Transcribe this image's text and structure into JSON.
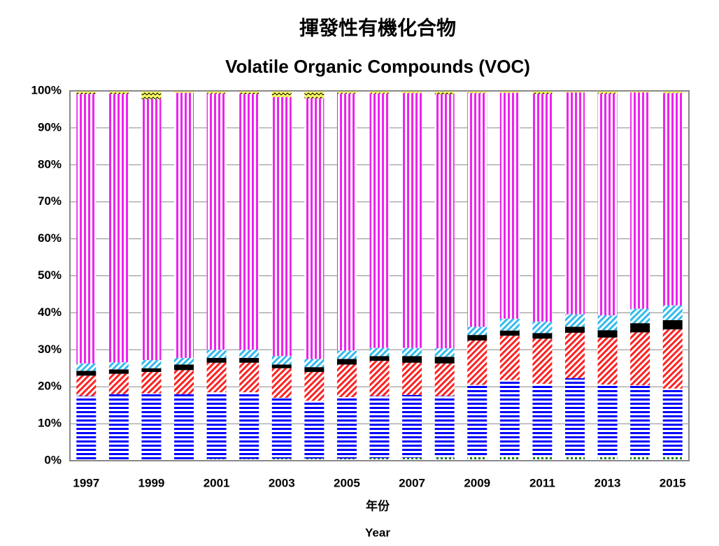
{
  "chart_data": {
    "type": "stacked_bar_100",
    "title": "揮發性有機化合物",
    "subtitle": "Volatile Organic Compounds (VOC)",
    "x_label": "年份",
    "x_label_en": "Year",
    "categories": [
      "1997",
      null,
      "1999",
      null,
      "2001",
      null,
      "2003",
      null,
      "2005",
      null,
      "2007",
      null,
      "2009",
      null,
      "2011",
      null,
      "2013",
      null,
      "2015"
    ],
    "ylim": [
      0,
      100
    ],
    "yticks": [
      {
        "value": 0,
        "label": "0%"
      },
      {
        "value": 10,
        "label": "10%"
      },
      {
        "value": 20,
        "label": "20%"
      },
      {
        "value": 30,
        "label": "30%"
      },
      {
        "value": 40,
        "label": "40%"
      },
      {
        "value": 50,
        "label": "50%"
      },
      {
        "value": 60,
        "label": "60%"
      },
      {
        "value": 70,
        "label": "70%"
      },
      {
        "value": 80,
        "label": "80%"
      },
      {
        "value": 90,
        "label": "90%"
      },
      {
        "value": 100,
        "label": "100%"
      }
    ],
    "grid": true,
    "series": [
      {
        "color": "#008000",
        "pattern": "dots",
        "values": [
          0.3,
          0.3,
          0.3,
          0.4,
          0.5,
          0.5,
          0.6,
          0.6,
          0.6,
          0.7,
          0.8,
          0.9,
          1.0,
          1.1,
          1.2,
          1.3,
          1.3,
          1.4,
          1.5
        ]
      },
      {
        "color": "#0000ff",
        "pattern": "horizontal",
        "values": [
          17.2,
          17.7,
          17.9,
          17.6,
          18.0,
          18.0,
          16.4,
          15.6,
          16.6,
          16.8,
          17.0,
          16.6,
          19.5,
          20.7,
          19.6,
          21.0,
          19.3,
          19.0,
          18.0
        ]
      },
      {
        "color": "#ff2020",
        "pattern": "diagonal",
        "values": [
          5.5,
          5.5,
          5.8,
          6.5,
          8.0,
          8.0,
          8.0,
          7.8,
          8.8,
          9.5,
          8.7,
          8.8,
          12.0,
          12.0,
          12.2,
          12.3,
          12.7,
          14.3,
          16.0
        ]
      },
      {
        "color": "#000000",
        "pattern": "solid",
        "values": [
          1.3,
          1.2,
          1.0,
          1.5,
          1.3,
          1.3,
          1.0,
          1.3,
          1.5,
          1.3,
          1.8,
          1.8,
          1.5,
          1.4,
          1.5,
          1.6,
          2.0,
          2.5,
          2.5
        ]
      },
      {
        "color": "#33bbee",
        "pattern": "diagonal",
        "values": [
          2.0,
          1.9,
          2.2,
          1.8,
          2.2,
          2.2,
          2.3,
          2.2,
          2.3,
          2.2,
          2.2,
          2.3,
          2.2,
          3.2,
          3.1,
          3.4,
          4.0,
          3.9,
          4.0
        ]
      },
      {
        "color": "#ee22ee",
        "pattern": "vertical",
        "values": [
          72.9,
          72.6,
          70.6,
          71.7,
          69.3,
          69.2,
          70.0,
          70.5,
          69.5,
          68.8,
          68.9,
          68.7,
          63.2,
          61.1,
          61.6,
          60.0,
          60.0,
          58.5,
          57.4
        ]
      },
      {
        "color": "#ffff66",
        "pattern": "zigzag",
        "values": [
          0.8,
          0.8,
          2.2,
          0.5,
          0.7,
          0.8,
          1.7,
          2.0,
          0.7,
          0.7,
          0.6,
          0.9,
          0.6,
          0.5,
          0.8,
          0.4,
          0.7,
          0.4,
          0.6
        ]
      }
    ]
  }
}
